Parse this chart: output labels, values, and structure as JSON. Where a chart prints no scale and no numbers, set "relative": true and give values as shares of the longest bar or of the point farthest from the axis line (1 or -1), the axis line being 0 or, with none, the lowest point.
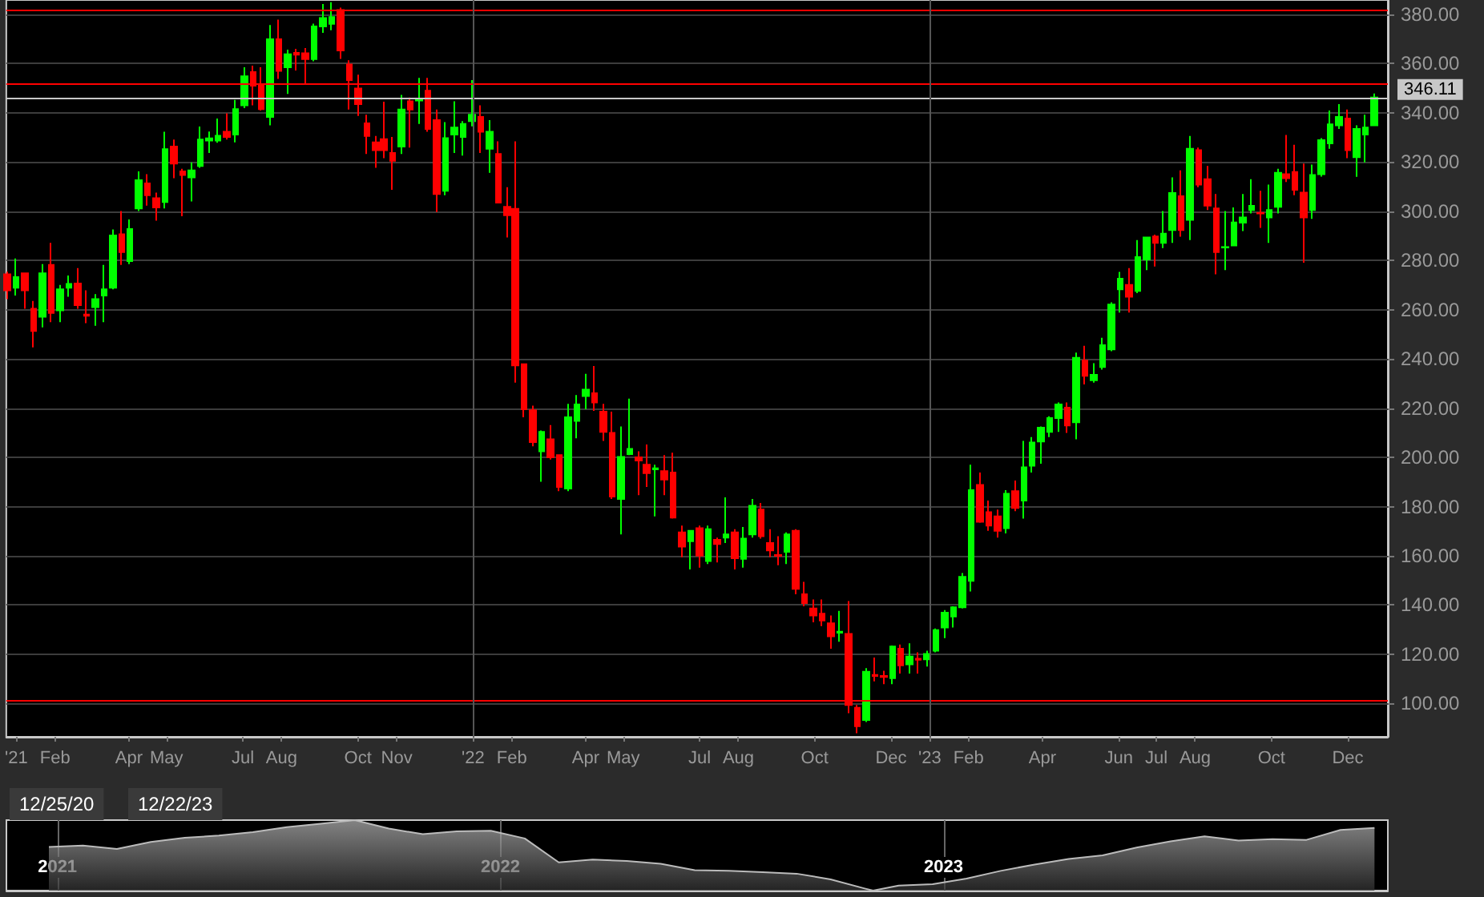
{
  "chart_data": [
    {
      "type": "candlestick",
      "grid": "y",
      "colors": [
        "#ff0000",
        "#00ff00",
        "#ff0000",
        "#ff0000",
        "#00ff00",
        "#ff0000",
        "#00ff00",
        "#00ff00",
        "#ff0000",
        "#ff0000",
        "#00ff00",
        "#00ff00",
        "#00ff00",
        "#ff0000",
        "#00ff00",
        "#00ff00",
        "#ff0000",
        "#ff0000",
        "#00ff00",
        "#ff0000",
        "#ff0000",
        "#00ff00",
        "#00ff00",
        "#00ff00",
        "#00ff00",
        "#ff0000",
        "#00ff00",
        "#00ff00",
        "#ff0000",
        "#ff0000",
        "#00ff00",
        "#ff0000",
        "#00ff00",
        "#ff0000",
        "#ff0000",
        "#00ff00",
        "#00ff00",
        "#00ff00",
        "#ff0000",
        "#ff0000",
        "#ff0000",
        "#ff0000",
        "#ff0000",
        "#ff0000",
        "#ff0000",
        "#00ff00",
        "#ff0000",
        "#00ff00",
        "#ff0000",
        "#ff0000",
        "#00ff00",
        "#00ff00",
        "#00ff00",
        "#00ff00",
        "#ff0000",
        "#00ff00",
        "#ff0000",
        "#ff0000",
        "#ff0000",
        "#ff0000",
        "#ff0000",
        "#00ff00",
        "#ff0000",
        "#ff0000",
        "#00ff00",
        "#00ff00",
        "#00ff00",
        "#ff0000",
        "#ff0000",
        "#ff0000",
        "#00ff00",
        "#00ff00",
        "#ff0000",
        "#ff0000",
        "#00ff00",
        "#ff0000",
        "#ff0000",
        "#ff0000",
        "#00ff00",
        "#ff0000",
        "#00ff00",
        "#ff0000",
        "#00ff00",
        "#ff0000",
        "#00ff00",
        "#00ff00",
        "#ff0000",
        "#ff0000",
        "#ff0000",
        "#00ff00",
        "#ff0000",
        "#ff0000",
        "#ff0000",
        "#ff0000",
        "#ff0000",
        "#00ff00",
        "#ff0000",
        "#ff0000",
        "#00ff00",
        "#ff0000",
        "#ff0000",
        "#00ff00",
        "#ff0000",
        "#00ff00",
        "#ff0000",
        "#00ff00",
        "#00ff00",
        "#00ff00",
        "#00ff00",
        "#00ff00",
        "#00ff00",
        "#ff0000",
        "#ff0000",
        "#ff0000",
        "#00ff00",
        "#ff0000",
        "#00ff00",
        "#00ff00",
        "#00ff00",
        "#00ff00",
        "#00ff00",
        "#ff0000",
        "#00ff00",
        "#ff0000",
        "#00ff00",
        "#00ff00",
        "#00ff00",
        "#00ff00",
        "#ff0000",
        "#00ff00",
        "#00ff00",
        "#ff0000",
        "#00ff00",
        "#00ff00",
        "#ff0000",
        "#00ff00",
        "#ff0000",
        "#ff0000",
        "#ff0000",
        "#00ff00",
        "#00ff00",
        "#00ff00",
        "#00ff00",
        "#ff0000",
        "#00ff00",
        "#00ff00",
        "#ff0000",
        "#ff0000",
        "#ff0000",
        "#00ff00",
        "#00ff00",
        "#00ff00",
        "#00ff00",
        "#ff0000",
        "#00ff00",
        "#00ff00",
        "#00ff00"
      ],
      "xlim": [
        "2020-12-24",
        "2024-01-02"
      ],
      "ylim": [
        86.5,
        385.7
      ],
      "xticks": [
        {
          "value": "2021-01-01",
          "label": "'21"
        },
        {
          "value": "2021-02-01",
          "label": "Feb"
        },
        {
          "value": "2021-04-01",
          "label": "Apr"
        },
        {
          "value": "2021-05-01",
          "label": "May"
        },
        {
          "value": "2021-07-01",
          "label": "Jul"
        },
        {
          "value": "2021-08-01",
          "label": "Aug"
        },
        {
          "value": "2021-10-01",
          "label": "Oct"
        },
        {
          "value": "2021-11-01",
          "label": "Nov"
        },
        {
          "value": "2022-01-01",
          "label": "'22"
        },
        {
          "value": "2022-02-01",
          "label": "Feb"
        },
        {
          "value": "2022-04-01",
          "label": "Apr"
        },
        {
          "value": "2022-05-01",
          "label": "May"
        },
        {
          "value": "2022-07-01",
          "label": "Jul"
        },
        {
          "value": "2022-08-01",
          "label": "Aug"
        },
        {
          "value": "2022-10-01",
          "label": "Oct"
        },
        {
          "value": "2022-12-01",
          "label": "Dec"
        },
        {
          "value": "2023-01-01",
          "label": "'23"
        },
        {
          "value": "2023-02-01",
          "label": "Feb"
        },
        {
          "value": "2023-04-01",
          "label": "Apr"
        },
        {
          "value": "2023-06-01",
          "label": "Jun"
        },
        {
          "value": "2023-07-01",
          "label": "Jul"
        },
        {
          "value": "2023-08-01",
          "label": "Aug"
        },
        {
          "value": "2023-10-01",
          "label": "Oct"
        },
        {
          "value": "2023-12-01",
          "label": "Dec"
        }
      ],
      "yticks": [
        {
          "value": 100,
          "label": "100.00"
        },
        {
          "value": 120,
          "label": "120.00"
        },
        {
          "value": 140,
          "label": "140.00"
        },
        {
          "value": 160,
          "label": "160.00"
        },
        {
          "value": 180,
          "label": "180.00"
        },
        {
          "value": 200,
          "label": "200.00"
        },
        {
          "value": 220,
          "label": "220.00"
        },
        {
          "value": 240,
          "label": "240.00"
        },
        {
          "value": 260,
          "label": "260.00"
        },
        {
          "value": 280,
          "label": "280.00"
        },
        {
          "value": 300,
          "label": "300.00"
        },
        {
          "value": 320,
          "label": "320.00"
        },
        {
          "value": 340,
          "label": "340.00"
        },
        {
          "value": 360,
          "label": "360.00"
        },
        {
          "value": 380,
          "label": "380.00"
        }
      ],
      "ref_lines": [
        {
          "axis": "y",
          "value": 381.6,
          "color": "#ff0000"
        },
        {
          "axis": "y",
          "value": 351.4,
          "color": "#ff0000"
        },
        {
          "axis": "y",
          "value": 346.11,
          "label": "346.11",
          "color": "#c8c8c8"
        },
        {
          "axis": "y",
          "value": 101.1,
          "color": "#ff0000"
        },
        {
          "axis": "x",
          "value": "2022-01-01",
          "color": "#555555"
        },
        {
          "axis": "x",
          "value": "2023-01-01",
          "color": "#555555"
        }
      ],
      "x": [
        "2020-12-25",
        "2021-01-01",
        "2021-01-08",
        "2021-01-15",
        "2021-01-22",
        "2021-01-29",
        "2021-02-05",
        "2021-02-12",
        "2021-02-19",
        "2021-02-26",
        "2021-03-05",
        "2021-03-12",
        "2021-03-19",
        "2021-03-26",
        "2021-04-02",
        "2021-04-09",
        "2021-04-16",
        "2021-04-23",
        "2021-04-30",
        "2021-05-07",
        "2021-05-14",
        "2021-05-21",
        "2021-05-28",
        "2021-06-04",
        "2021-06-11",
        "2021-06-18",
        "2021-06-25",
        "2021-07-02",
        "2021-07-09",
        "2021-07-16",
        "2021-07-23",
        "2021-07-30",
        "2021-08-06",
        "2021-08-13",
        "2021-08-20",
        "2021-08-27",
        "2021-09-03",
        "2021-09-10",
        "2021-09-17",
        "2021-09-24",
        "2021-10-01",
        "2021-10-08",
        "2021-10-15",
        "2021-10-22",
        "2021-10-29",
        "2021-11-05",
        "2021-11-12",
        "2021-11-19",
        "2021-11-26",
        "2021-12-03",
        "2021-12-10",
        "2021-12-17",
        "2021-12-24",
        "2021-12-31",
        "2022-01-07",
        "2022-01-14",
        "2022-01-21",
        "2022-01-28",
        "2022-02-04",
        "2022-02-11",
        "2022-02-18",
        "2022-02-25",
        "2022-03-04",
        "2022-03-11",
        "2022-03-18",
        "2022-03-25",
        "2022-04-01",
        "2022-04-08",
        "2022-04-15",
        "2022-04-22",
        "2022-04-29",
        "2022-05-06",
        "2022-05-13",
        "2022-05-20",
        "2022-05-27",
        "2022-06-03",
        "2022-06-10",
        "2022-06-17",
        "2022-06-24",
        "2022-07-01",
        "2022-07-08",
        "2022-07-15",
        "2022-07-22",
        "2022-07-29",
        "2022-08-05",
        "2022-08-12",
        "2022-08-19",
        "2022-08-26",
        "2022-09-02",
        "2022-09-09",
        "2022-09-16",
        "2022-09-23",
        "2022-09-30",
        "2022-10-07",
        "2022-10-14",
        "2022-10-21",
        "2022-10-28",
        "2022-11-04",
        "2022-11-11",
        "2022-11-18",
        "2022-11-25",
        "2022-12-02",
        "2022-12-09",
        "2022-12-16",
        "2022-12-23",
        "2022-12-30",
        "2023-01-06",
        "2023-01-13",
        "2023-01-20",
        "2023-01-27",
        "2023-02-03",
        "2023-02-10",
        "2023-02-17",
        "2023-02-24",
        "2023-03-03",
        "2023-03-10",
        "2023-03-17",
        "2023-03-24",
        "2023-03-31",
        "2023-04-07",
        "2023-04-14",
        "2023-04-21",
        "2023-04-28",
        "2023-05-05",
        "2023-05-12",
        "2023-05-19",
        "2023-05-26",
        "2023-06-02",
        "2023-06-09",
        "2023-06-16",
        "2023-06-23",
        "2023-06-30",
        "2023-07-07",
        "2023-07-14",
        "2023-07-21",
        "2023-07-28",
        "2023-08-04",
        "2023-08-11",
        "2023-08-18",
        "2023-08-25",
        "2023-09-01",
        "2023-09-08",
        "2023-09-15",
        "2023-09-22",
        "2023-09-29",
        "2023-10-06",
        "2023-10-13",
        "2023-10-20",
        "2023-10-27",
        "2023-11-03",
        "2023-11-10",
        "2023-11-17",
        "2023-11-24",
        "2023-12-01",
        "2023-12-08",
        "2023-12-15",
        "2023-12-22"
      ],
      "ohlc": [
        [
          274.3,
          275.4,
          264.2,
          267.8
        ],
        [
          268.9,
          280.7,
          265.7,
          273.2
        ],
        [
          274.7,
          274.7,
          260.3,
          267.8
        ],
        [
          260.3,
          263.5,
          244.6,
          251.3
        ],
        [
          257.1,
          278.5,
          252.8,
          274.7
        ],
        [
          278.1,
          287.1,
          254.9,
          258.6
        ],
        [
          259.7,
          270.0,
          254.9,
          268.2
        ],
        [
          268.9,
          273.8,
          265.2,
          270.4
        ],
        [
          270.6,
          276.8,
          260.3,
          261.8
        ],
        [
          258.0,
          267.8,
          254.5,
          257.5
        ],
        [
          261.0,
          266.3,
          253.4,
          264.2
        ],
        [
          265.7,
          278.1,
          254.9,
          268.2
        ],
        [
          268.9,
          292.5,
          268.2,
          290.1
        ],
        [
          290.6,
          300.0,
          278.1,
          283.3
        ],
        [
          279.7,
          296.6,
          278.5,
          292.7
        ],
        [
          301.1,
          316.1,
          300.0,
          312.5
        ],
        [
          311.2,
          315.0,
          302.2,
          306.4
        ],
        [
          305.2,
          307.5,
          296.1,
          301.5
        ],
        [
          303.7,
          332.2,
          301.1,
          325.1
        ],
        [
          326.2,
          329.0,
          313.3,
          319.3
        ],
        [
          316.1,
          317.2,
          297.9,
          314.6
        ],
        [
          313.7,
          319.8,
          303.9,
          316.5
        ],
        [
          318.3,
          334.3,
          317.6,
          329.0
        ],
        [
          328.6,
          332.3,
          323.6,
          329.5
        ],
        [
          328.6,
          337.6,
          327.7,
          330.6
        ],
        [
          332.2,
          339.7,
          329.0,
          330.1
        ],
        [
          331.1,
          345.1,
          327.9,
          341.4
        ],
        [
          342.9,
          358.4,
          341.8,
          354.7
        ],
        [
          356.4,
          359.0,
          342.9,
          350.9
        ],
        [
          351.5,
          358.4,
          340.8,
          341.4
        ],
        [
          338.2,
          375.5,
          334.8,
          369.8
        ],
        [
          369.8,
          377.7,
          353.7,
          356.9
        ],
        [
          358.4,
          365.5,
          347.6,
          363.7
        ],
        [
          364.2,
          365.9,
          357.1,
          363.5
        ],
        [
          364.1,
          366.2,
          351.5,
          361.7
        ],
        [
          361.7,
          376.1,
          360.8,
          375.0
        ],
        [
          375.0,
          384.1,
          372.4,
          378.4
        ],
        [
          376.0,
          384.8,
          373.4,
          378.8
        ],
        [
          381.6,
          382.6,
          361.8,
          365.2
        ],
        [
          359.5,
          361.2,
          341.2,
          353.2
        ],
        [
          349.8,
          355.4,
          338.6,
          343.4
        ],
        [
          335.6,
          339.1,
          323.2,
          330.5
        ],
        [
          327.9,
          330.5,
          317.6,
          324.7
        ],
        [
          329.2,
          344.4,
          321.5,
          324.7
        ],
        [
          323.6,
          330.1,
          308.6,
          320.4
        ],
        [
          326.2,
          347.2,
          323.2,
          341.2
        ],
        [
          344.6,
          346.1,
          325.8,
          341.2
        ],
        [
          344.9,
          354.1,
          335.4,
          345.3
        ],
        [
          348.9,
          354.1,
          332.2,
          333.3
        ],
        [
          336.9,
          341.2,
          299.6,
          306.9
        ],
        [
          308.2,
          336.1,
          306.4,
          329.6
        ],
        [
          331.1,
          344.6,
          323.6,
          333.9
        ],
        [
          330.1,
          336.5,
          322.5,
          335.4
        ],
        [
          336.5,
          353.2,
          334.4,
          339.1
        ],
        [
          338.2,
          342.9,
          323.6,
          332.2
        ],
        [
          325.3,
          336.9,
          315.5,
          332.2
        ],
        [
          323.2,
          328.3,
          303.4,
          303.4
        ],
        [
          301.7,
          309.7,
          289.3,
          298.3
        ],
        [
          300.9,
          328.3,
          230.3,
          237.3
        ],
        [
          237.8,
          237.8,
          216.3,
          219.5
        ],
        [
          219.1,
          221.0,
          204.5,
          206.2
        ],
        [
          202.4,
          210.9,
          190.1,
          210.3
        ],
        [
          207.3,
          213.1,
          199.1,
          200.0
        ],
        [
          200.9,
          200.9,
          186.3,
          188.0
        ],
        [
          187.3,
          221.7,
          186.3,
          216.3
        ],
        [
          214.8,
          225.3,
          207.7,
          221.5
        ],
        [
          224.9,
          233.9,
          219.5,
          227.5
        ],
        [
          226.0,
          237.1,
          218.9,
          222.3
        ],
        [
          218.5,
          221.7,
          206.7,
          210.3
        ],
        [
          209.9,
          218.5,
          183.1,
          184.1
        ],
        [
          183.1,
          212.5,
          168.7,
          200.2
        ],
        [
          201.3,
          223.8,
          200.9,
          203.4
        ],
        [
          200.0,
          202.4,
          184.6,
          198.7
        ],
        [
          197.0,
          205.2,
          188.0,
          193.6
        ],
        [
          195.1,
          197.0,
          176.0,
          195.5
        ],
        [
          194.4,
          200.9,
          184.6,
          191.0
        ],
        [
          193.8,
          201.9,
          175.1,
          175.5
        ],
        [
          169.5,
          172.3,
          159.4,
          163.7
        ],
        [
          165.9,
          170.2,
          154.5,
          170.2
        ],
        [
          171.2,
          172.3,
          155.2,
          160.1
        ],
        [
          157.9,
          172.3,
          156.7,
          170.8
        ],
        [
          166.5,
          167.4,
          157.3,
          164.8
        ],
        [
          167.4,
          183.7,
          165.2,
          168.7
        ],
        [
          169.5,
          170.8,
          154.5,
          159.0
        ],
        [
          158.8,
          171.7,
          155.2,
          167.0
        ],
        [
          168.7,
          183.1,
          167.4,
          180.3
        ],
        [
          178.8,
          181.5,
          167.0,
          168.0
        ],
        [
          165.2,
          170.8,
          159.4,
          162.2
        ],
        [
          160.3,
          168.0,
          156.2,
          160.0
        ],
        [
          161.6,
          169.5,
          156.7,
          168.7
        ],
        [
          170.2,
          170.8,
          144.4,
          146.6
        ],
        [
          144.4,
          149.4,
          139.5,
          140.8
        ],
        [
          138.6,
          142.3,
          133.0,
          135.8
        ],
        [
          136.5,
          142.3,
          131.5,
          133.7
        ],
        [
          132.6,
          135.8,
          122.3,
          127.3
        ],
        [
          128.8,
          137.6,
          125.1,
          129.2
        ],
        [
          128.3,
          141.6,
          96.1,
          99.4
        ],
        [
          98.3,
          99.4,
          88.0,
          90.8
        ],
        [
          93.3,
          114.4,
          92.5,
          112.9
        ],
        [
          111.6,
          118.7,
          109.0,
          111.2
        ],
        [
          111.2,
          113.3,
          107.9,
          110.8
        ],
        [
          110.3,
          123.6,
          107.9,
          123.2
        ],
        [
          122.3,
          124.0,
          112.2,
          115.5
        ],
        [
          115.9,
          124.5,
          112.2,
          119.1
        ],
        [
          118.2,
          120.8,
          112.2,
          117.8
        ],
        [
          118.0,
          121.5,
          115.0,
          120.2
        ],
        [
          121.5,
          130.5,
          120.8,
          129.8
        ],
        [
          130.9,
          138.0,
          126.6,
          136.9
        ],
        [
          135.4,
          139.5,
          130.9,
          139.1
        ],
        [
          139.1,
          153.0,
          138.6,
          151.5
        ],
        [
          149.8,
          197.0,
          145.5,
          186.7
        ],
        [
          188.8,
          193.8,
          173.4,
          173.8
        ],
        [
          177.7,
          182.4,
          170.2,
          172.3
        ],
        [
          176.0,
          178.8,
          167.4,
          170.2
        ],
        [
          171.2,
          186.7,
          169.1,
          185.2
        ],
        [
          186.3,
          190.6,
          178.1,
          179.4
        ],
        [
          182.4,
          206.7,
          175.1,
          195.9
        ],
        [
          196.6,
          208.2,
          193.8,
          206.0
        ],
        [
          206.4,
          212.5,
          197.4,
          212.0
        ],
        [
          210.3,
          216.7,
          208.2,
          215.9
        ],
        [
          215.9,
          222.3,
          210.3,
          221.5
        ],
        [
          220.2,
          222.3,
          209.9,
          212.9
        ],
        [
          214.2,
          242.5,
          207.3,
          240.4
        ],
        [
          239.3,
          245.3,
          229.6,
          233.1
        ],
        [
          231.3,
          238.2,
          230.3,
          233.5
        ],
        [
          236.7,
          248.5,
          235.6,
          245.5
        ],
        [
          243.8,
          262.9,
          243.1,
          262.0
        ],
        [
          268.2,
          275.3,
          258.8,
          272.5
        ],
        [
          270.0,
          276.8,
          258.8,
          265.2
        ],
        [
          267.6,
          288.2,
          266.7,
          281.3
        ],
        [
          280.3,
          289.3,
          276.0,
          289.3
        ],
        [
          289.7,
          290.4,
          277.5,
          287.1
        ],
        [
          287.1,
          300.0,
          285.0,
          290.8
        ],
        [
          292.3,
          313.7,
          287.1,
          307.3
        ],
        [
          306.0,
          316.5,
          289.6,
          292.3
        ],
        [
          296.4,
          330.5,
          288.2,
          325.3
        ],
        [
          324.7,
          325.8,
          309.7,
          310.7
        ],
        [
          312.9,
          318.3,
          300.4,
          302.2
        ],
        [
          301.1,
          306.9,
          274.3,
          283.3
        ],
        [
          285.2,
          300.0,
          276.0,
          285.4
        ],
        [
          286.0,
          301.5,
          286.0,
          295.4
        ],
        [
          295.3,
          306.9,
          291.9,
          297.4
        ],
        [
          300.4,
          312.9,
          299.0,
          302.1
        ],
        [
          299.3,
          308.2,
          293.2,
          299.0
        ],
        [
          297.4,
          310.7,
          287.1,
          300.4
        ],
        [
          301.7,
          317.2,
          299.0,
          315.5
        ],
        [
          315.0,
          330.9,
          311.8,
          313.3
        ],
        [
          315.9,
          326.9,
          306.4,
          308.6
        ],
        [
          307.5,
          319.3,
          279.0,
          297.4
        ],
        [
          300.4,
          318.9,
          296.8,
          314.6
        ],
        [
          315.0,
          329.6,
          314.0,
          328.8
        ],
        [
          327.5,
          340.8,
          325.3,
          335.2
        ],
        [
          334.8,
          343.4,
          333.3,
          338.2
        ],
        [
          337.6,
          341.2,
          321.5,
          324.7
        ],
        [
          321.9,
          334.8,
          313.9,
          333.3
        ],
        [
          331.1,
          339.1,
          319.8,
          333.9
        ],
        [
          334.8,
          347.7,
          334.8,
          346.11
        ]
      ]
    },
    {
      "type": "area",
      "relative": true,
      "grid": "x",
      "color": "#bbbbbb",
      "xlim": [
        "2020-11-20",
        "2024-01-02"
      ],
      "xticks": [
        {
          "value": "2021-01-01",
          "label": "2021"
        },
        {
          "value": "2022-01-01",
          "label": "2022"
        },
        {
          "value": "2023-01-01",
          "label": "2023"
        }
      ],
      "annotations": [
        "12/25/20",
        "12/22/23"
      ],
      "x": [
        "2020-12-25",
        "2021-01-22",
        "2021-02-19",
        "2021-03-19",
        "2021-04-16",
        "2021-05-14",
        "2021-06-11",
        "2021-07-09",
        "2021-08-06",
        "2021-09-03",
        "2021-10-01",
        "2021-10-29",
        "2021-11-26",
        "2021-12-24",
        "2022-01-21",
        "2022-02-18",
        "2022-03-18",
        "2022-04-15",
        "2022-05-13",
        "2022-06-10",
        "2022-07-08",
        "2022-08-05",
        "2022-09-02",
        "2022-09-30",
        "2022-10-28",
        "2022-11-04",
        "2022-11-25",
        "2022-12-23",
        "2023-01-20",
        "2023-02-17",
        "2023-03-17",
        "2023-04-14",
        "2023-05-12",
        "2023-06-09",
        "2023-07-07",
        "2023-08-04",
        "2023-09-01",
        "2023-09-29",
        "2023-10-27",
        "2023-11-24",
        "2023-12-22"
      ],
      "values": [
        0.62,
        0.64,
        0.59,
        0.69,
        0.75,
        0.78,
        0.83,
        0.9,
        0.95,
        1,
        0.88,
        0.8,
        0.84,
        0.85,
        0.74,
        0.4,
        0.44,
        0.42,
        0.38,
        0.29,
        0.28,
        0.26,
        0.24,
        0.16,
        0.03,
        0,
        0.07,
        0.09,
        0.17,
        0.28,
        0.37,
        0.45,
        0.5,
        0.61,
        0.7,
        0.77,
        0.71,
        0.73,
        0.72,
        0.86,
        0.89
      ]
    }
  ]
}
